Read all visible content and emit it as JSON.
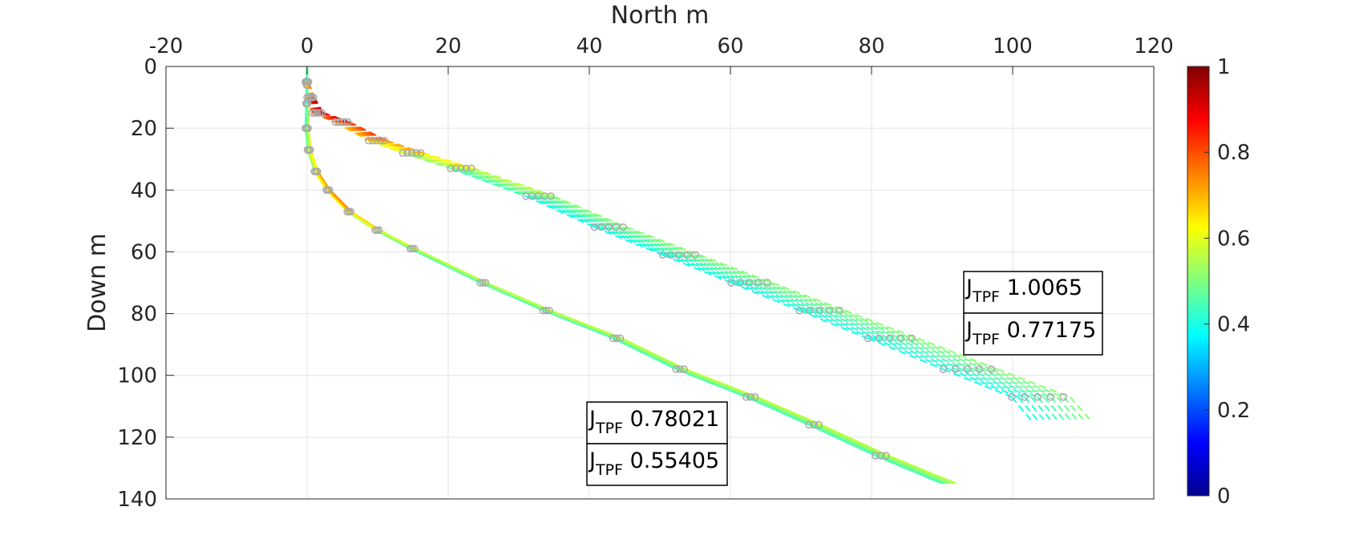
{
  "chart_data": {
    "type": "line",
    "xlabel": "North m",
    "ylabel": "Down m",
    "xlim": [
      -20,
      120
    ],
    "ylim": [
      0,
      140
    ],
    "y_reversed": true,
    "x_axis_position": "top",
    "grid": true,
    "xticks": [
      "-20",
      "0",
      "20",
      "40",
      "60",
      "80",
      "100",
      "120"
    ],
    "yticks": [
      "0",
      "20",
      "40",
      "60",
      "80",
      "100",
      "120",
      "140"
    ],
    "colormap": "jet",
    "colorbar": {
      "position": "right",
      "limits": [
        0,
        1
      ],
      "ticks": [
        "0",
        "0.2",
        "0.4",
        "0.6",
        "0.8",
        "1"
      ]
    },
    "series": [
      {
        "trajectory": "lower",
        "count": 6,
        "points": [
          [
            0,
            0
          ],
          [
            0,
            6
          ],
          [
            0,
            12
          ],
          [
            0,
            20
          ],
          [
            0.3,
            27
          ],
          [
            1.3,
            34
          ],
          [
            3,
            40
          ],
          [
            6,
            47
          ],
          [
            10,
            53
          ],
          [
            15,
            59
          ],
          [
            25,
            70
          ],
          [
            34,
            79
          ],
          [
            44,
            88
          ],
          [
            53,
            98
          ],
          [
            63,
            107
          ],
          [
            72,
            116
          ],
          [
            81.5,
            126
          ],
          [
            91,
            135
          ]
        ],
        "color_values": [
          0.4,
          0.4,
          0.45,
          0.5,
          0.55,
          0.6,
          0.7,
          0.65,
          0.55,
          0.5,
          0.5,
          0.5,
          0.5,
          0.5,
          0.5,
          0.5,
          0.5,
          0.5
        ]
      },
      {
        "trajectory": "upper",
        "count": 10,
        "points": [
          [
            0,
            0
          ],
          [
            0,
            5
          ],
          [
            0.5,
            10
          ],
          [
            1.5,
            15
          ],
          [
            5,
            18
          ],
          [
            10,
            24
          ],
          [
            15,
            28
          ],
          [
            22,
            33
          ],
          [
            33,
            42
          ],
          [
            43,
            52
          ],
          [
            53,
            61
          ],
          [
            63,
            70
          ],
          [
            73,
            79
          ],
          [
            83,
            88
          ],
          [
            94,
            98
          ],
          [
            104,
            107
          ],
          [
            107,
            115
          ]
        ],
        "color_values": [
          0.4,
          0.5,
          0.9,
          0.85,
          0.8,
          0.7,
          0.6,
          0.55,
          0.45,
          0.45,
          0.45,
          0.45,
          0.45,
          0.45,
          0.45,
          0.45,
          0.45
        ]
      }
    ],
    "annotations": [
      {
        "symbol": "J",
        "subscript": "TPF",
        "value": "1.0065"
      },
      {
        "symbol": "J",
        "subscript": "TPF",
        "value": "0.77175"
      },
      {
        "symbol": "J",
        "subscript": "TPF",
        "value": "0.78021"
      },
      {
        "symbol": "J",
        "subscript": "TPF",
        "value": "0.55405"
      }
    ]
  }
}
